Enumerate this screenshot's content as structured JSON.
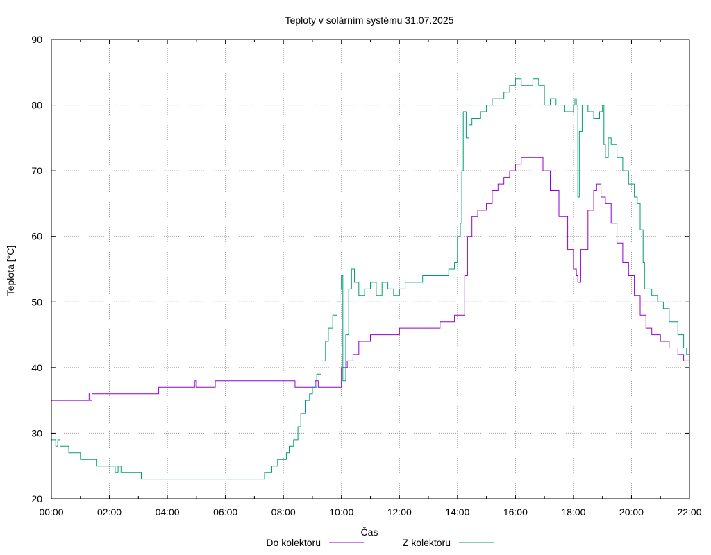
{
  "chart_data": {
    "type": "line",
    "title": "Teploty v solárním systému 31.07.2025",
    "xlabel": "Čas",
    "ylabel": "Teplota [°C]",
    "xlim": [
      0,
      22
    ],
    "ylim": [
      20,
      90
    ],
    "x_unit": "hours",
    "x_ticks": [
      "00:00",
      "02:00",
      "04:00",
      "06:00",
      "08:00",
      "10:00",
      "12:00",
      "14:00",
      "16:00",
      "18:00",
      "20:00",
      "22:00"
    ],
    "y_ticks": [
      20,
      30,
      40,
      50,
      60,
      70,
      80,
      90
    ],
    "grid": true,
    "legend_position": "bottom",
    "series": [
      {
        "name": "Do kolektoru",
        "color": "#9400d3",
        "points": [
          [
            0.0,
            35
          ],
          [
            1.2,
            35
          ],
          [
            1.3,
            36
          ],
          [
            1.33,
            35
          ],
          [
            1.4,
            36
          ],
          [
            3.7,
            36
          ],
          [
            3.7,
            37
          ],
          [
            4.9,
            37
          ],
          [
            4.95,
            38
          ],
          [
            5.0,
            37
          ],
          [
            5.6,
            37
          ],
          [
            5.65,
            38
          ],
          [
            8.4,
            38
          ],
          [
            8.4,
            37
          ],
          [
            9.0,
            37
          ],
          [
            9.1,
            38
          ],
          [
            9.2,
            37
          ],
          [
            10.0,
            37
          ],
          [
            10.0,
            40
          ],
          [
            10.2,
            41
          ],
          [
            10.4,
            42
          ],
          [
            10.6,
            44
          ],
          [
            10.9,
            44
          ],
          [
            11.0,
            45
          ],
          [
            11.6,
            45
          ],
          [
            12.0,
            45
          ],
          [
            12.0,
            46
          ],
          [
            13.4,
            46
          ],
          [
            13.4,
            47
          ],
          [
            13.8,
            47
          ],
          [
            13.9,
            48
          ],
          [
            14.2,
            48
          ],
          [
            14.25,
            54
          ],
          [
            14.35,
            60
          ],
          [
            14.5,
            63
          ],
          [
            14.7,
            64
          ],
          [
            15.0,
            65
          ],
          [
            15.2,
            67
          ],
          [
            15.4,
            68
          ],
          [
            15.6,
            69
          ],
          [
            15.8,
            70
          ],
          [
            16.0,
            71
          ],
          [
            16.2,
            72
          ],
          [
            16.5,
            72
          ],
          [
            16.8,
            72
          ],
          [
            16.95,
            70
          ],
          [
            17.2,
            67
          ],
          [
            17.5,
            63
          ],
          [
            17.8,
            58
          ],
          [
            18.0,
            55
          ],
          [
            18.1,
            54
          ],
          [
            18.15,
            53
          ],
          [
            18.25,
            58
          ],
          [
            18.5,
            64
          ],
          [
            18.7,
            67
          ],
          [
            18.8,
            68
          ],
          [
            18.95,
            66
          ],
          [
            19.1,
            65
          ],
          [
            19.3,
            62
          ],
          [
            19.5,
            59
          ],
          [
            19.7,
            56
          ],
          [
            19.9,
            54
          ],
          [
            20.1,
            51
          ],
          [
            20.3,
            48
          ],
          [
            20.5,
            46
          ],
          [
            20.7,
            45
          ],
          [
            21.0,
            44
          ],
          [
            21.3,
            43
          ],
          [
            21.5,
            43
          ],
          [
            21.6,
            42
          ],
          [
            21.8,
            41
          ],
          [
            22.0,
            41
          ]
        ]
      },
      {
        "name": "Z kolektoru",
        "color": "#009e73",
        "points": [
          [
            0.0,
            29
          ],
          [
            0.15,
            28
          ],
          [
            0.22,
            29
          ],
          [
            0.3,
            28
          ],
          [
            0.6,
            28
          ],
          [
            0.6,
            27
          ],
          [
            1.0,
            27
          ],
          [
            1.0,
            26
          ],
          [
            1.55,
            26
          ],
          [
            1.55,
            25
          ],
          [
            2.1,
            25
          ],
          [
            2.2,
            24
          ],
          [
            2.3,
            25
          ],
          [
            2.4,
            24
          ],
          [
            3.1,
            24
          ],
          [
            3.1,
            23
          ],
          [
            7.3,
            23
          ],
          [
            7.35,
            24
          ],
          [
            7.6,
            24
          ],
          [
            7.6,
            25
          ],
          [
            7.75,
            25
          ],
          [
            7.8,
            26
          ],
          [
            8.0,
            26
          ],
          [
            8.1,
            27
          ],
          [
            8.2,
            28
          ],
          [
            8.35,
            29
          ],
          [
            8.5,
            31
          ],
          [
            8.6,
            33
          ],
          [
            8.75,
            35
          ],
          [
            8.9,
            36
          ],
          [
            9.0,
            37
          ],
          [
            9.15,
            39
          ],
          [
            9.3,
            41
          ],
          [
            9.45,
            44
          ],
          [
            9.55,
            46
          ],
          [
            9.7,
            48
          ],
          [
            9.85,
            50
          ],
          [
            9.95,
            52
          ],
          [
            10.0,
            54
          ],
          [
            10.05,
            38
          ],
          [
            10.15,
            45
          ],
          [
            10.25,
            52
          ],
          [
            10.35,
            55
          ],
          [
            10.45,
            53
          ],
          [
            10.6,
            51
          ],
          [
            10.8,
            52
          ],
          [
            11.0,
            53
          ],
          [
            11.2,
            51
          ],
          [
            11.4,
            53
          ],
          [
            11.6,
            52
          ],
          [
            11.8,
            51
          ],
          [
            12.0,
            52
          ],
          [
            12.2,
            53
          ],
          [
            12.5,
            53
          ],
          [
            12.8,
            54
          ],
          [
            13.1,
            54
          ],
          [
            13.4,
            54
          ],
          [
            13.7,
            55
          ],
          [
            13.9,
            56
          ],
          [
            14.0,
            60
          ],
          [
            14.1,
            62
          ],
          [
            14.15,
            70
          ],
          [
            14.2,
            79
          ],
          [
            14.3,
            75
          ],
          [
            14.4,
            77
          ],
          [
            14.5,
            78
          ],
          [
            14.6,
            78
          ],
          [
            14.8,
            79
          ],
          [
            15.0,
            80
          ],
          [
            15.2,
            81
          ],
          [
            15.4,
            81
          ],
          [
            15.6,
            82
          ],
          [
            15.8,
            83
          ],
          [
            16.0,
            84
          ],
          [
            16.2,
            83
          ],
          [
            16.4,
            83
          ],
          [
            16.6,
            84
          ],
          [
            16.8,
            83
          ],
          [
            17.0,
            80
          ],
          [
            17.2,
            81
          ],
          [
            17.4,
            80
          ],
          [
            17.7,
            79
          ],
          [
            17.95,
            79
          ],
          [
            18.0,
            80
          ],
          [
            18.05,
            81
          ],
          [
            18.1,
            80
          ],
          [
            18.15,
            66
          ],
          [
            18.2,
            76
          ],
          [
            18.3,
            80
          ],
          [
            18.5,
            79
          ],
          [
            18.7,
            78
          ],
          [
            18.9,
            79
          ],
          [
            19.0,
            80
          ],
          [
            19.05,
            74
          ],
          [
            19.1,
            72
          ],
          [
            19.2,
            75
          ],
          [
            19.3,
            74
          ],
          [
            19.5,
            72
          ],
          [
            19.7,
            70
          ],
          [
            19.9,
            68
          ],
          [
            20.1,
            66
          ],
          [
            20.2,
            65
          ],
          [
            20.3,
            61
          ],
          [
            20.4,
            56
          ],
          [
            20.45,
            52
          ],
          [
            20.7,
            51
          ],
          [
            20.9,
            50
          ],
          [
            21.1,
            49
          ],
          [
            21.3,
            47
          ],
          [
            21.6,
            45
          ],
          [
            21.8,
            43
          ],
          [
            21.9,
            42
          ],
          [
            22.0,
            41
          ]
        ]
      }
    ]
  }
}
